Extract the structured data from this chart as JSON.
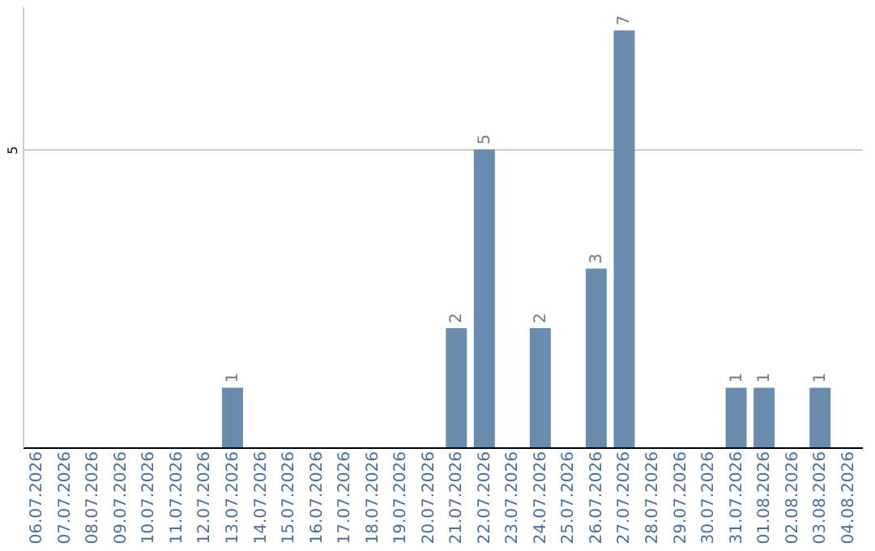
{
  "chart_data": {
    "type": "bar",
    "categories": [
      "06.07.2026",
      "07.07.2026",
      "08.07.2026",
      "09.07.2026",
      "10.07.2026",
      "11.07.2026",
      "12.07.2026",
      "13.07.2026",
      "14.07.2026",
      "15.07.2026",
      "16.07.2026",
      "17.07.2026",
      "18.07.2026",
      "19.07.2026",
      "20.07.2026",
      "21.07.2026",
      "22.07.2026",
      "23.07.2026",
      "24.07.2026",
      "25.07.2026",
      "26.07.2026",
      "27.07.2026",
      "28.07.2026",
      "29.07.2026",
      "30.07.2026",
      "31.07.2026",
      "01.08.2026",
      "02.08.2026",
      "03.08.2026",
      "04.08.2026"
    ],
    "values": [
      0,
      0,
      0,
      0,
      0,
      0,
      0,
      1,
      0,
      0,
      0,
      0,
      0,
      0,
      0,
      2,
      5,
      0,
      2,
      0,
      3,
      7,
      0,
      0,
      0,
      1,
      1,
      0,
      1,
      0
    ],
    "value_labels": [
      null,
      null,
      null,
      null,
      null,
      null,
      null,
      "1",
      null,
      null,
      null,
      null,
      null,
      null,
      null,
      "2",
      "5",
      null,
      "2",
      null,
      "3",
      "7",
      null,
      null,
      null,
      "1",
      "1",
      null,
      "1",
      null
    ],
    "color": "#6a8caf",
    "ylim": [
      0,
      7.4
    ],
    "yticks": [
      5
    ],
    "grid": "y"
  }
}
